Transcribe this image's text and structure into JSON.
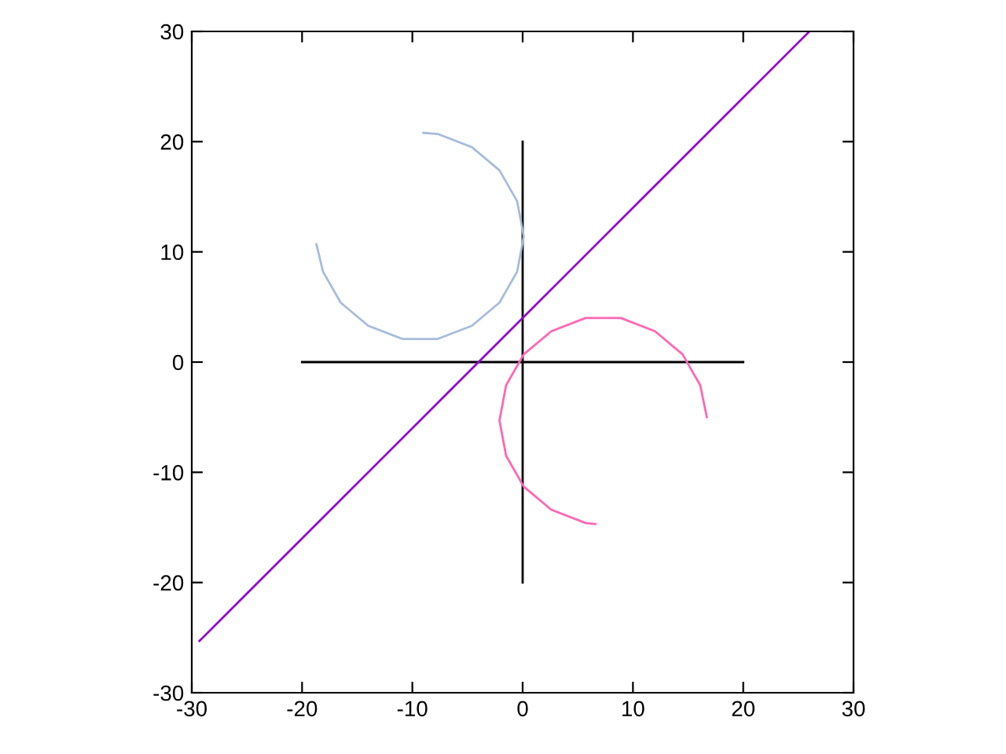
{
  "chart_data": {
    "type": "line",
    "xlim": [
      -30,
      30
    ],
    "ylim": [
      -30,
      30
    ],
    "xticks": [
      -30,
      -20,
      -10,
      0,
      10,
      20,
      30
    ],
    "yticks": [
      -30,
      -20,
      -10,
      0,
      10,
      20,
      30
    ],
    "grid": false,
    "marker": "none",
    "series": [
      {
        "color": "#000000",
        "x": [
          -20,
          20
        ],
        "values": [
          0,
          0
        ]
      },
      {
        "color": "#000000",
        "x": [
          0,
          0
        ],
        "values": [
          -20,
          20
        ]
      },
      {
        "color": "#9400d3",
        "x": [
          -29.3,
          26
        ],
        "values": [
          -25.3,
          30
        ]
      },
      {
        "color": "#a7bcdc",
        "x": [
          -18.7,
          -18.1,
          -16.5,
          -14.0,
          -10.9,
          -7.7,
          -4.6,
          -2.1,
          -0.5,
          0.1,
          -0.5,
          -2.1,
          -4.6,
          -7.7,
          -9.0
        ],
        "values": [
          10.7,
          8.2,
          5.4,
          3.3,
          2.1,
          2.1,
          3.3,
          5.4,
          8.2,
          11.4,
          14.6,
          17.4,
          19.5,
          20.7,
          20.8
        ]
      },
      {
        "color": "#ff66b3",
        "x": [
          16.7,
          16.1,
          14.5,
          12.0,
          8.9,
          5.7,
          2.6,
          0.1,
          -1.5,
          -2.1,
          -1.5,
          0.1,
          2.6,
          5.7,
          6.6
        ],
        "values": [
          -5.0,
          -2.1,
          0.7,
          2.8,
          4.0,
          4.0,
          2.8,
          0.7,
          -2.1,
          -5.3,
          -8.5,
          -11.3,
          -13.4,
          -14.6,
          -14.7
        ]
      }
    ]
  }
}
